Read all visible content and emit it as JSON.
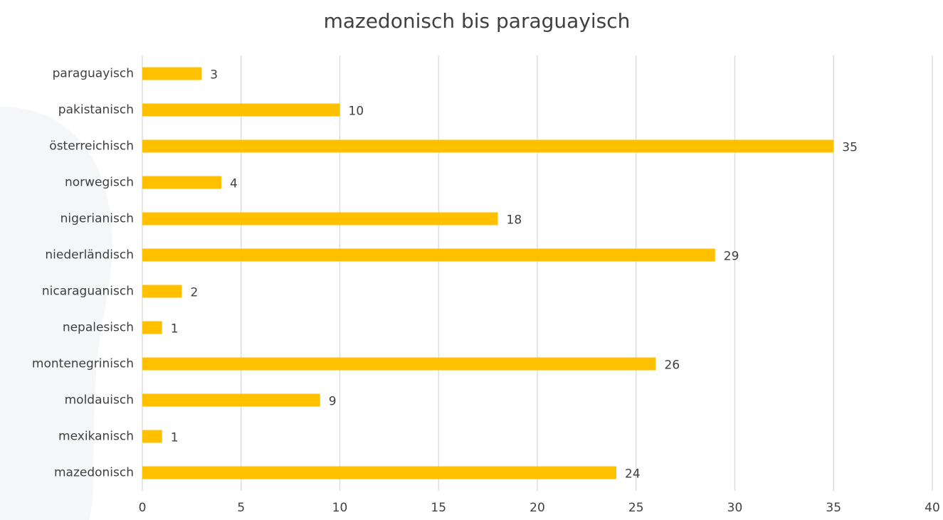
{
  "chart_data": {
    "type": "bar",
    "orientation": "horizontal",
    "title": "mazedonisch bis paraguayisch",
    "categories": [
      "mazedonisch",
      "mexikanisch",
      "moldauisch",
      "montenegrinisch",
      "nepalesisch",
      "nicaraguanisch",
      "niederländisch",
      "nigerianisch",
      "norwegisch",
      "österreichisch",
      "pakistanisch",
      "paraguayisch"
    ],
    "values": [
      24,
      1,
      9,
      26,
      1,
      2,
      29,
      18,
      4,
      35,
      10,
      3
    ],
    "color": "#ffc000",
    "xlim": [
      0,
      40
    ],
    "xticks": [
      0,
      5,
      10,
      15,
      20,
      25,
      30,
      35,
      40
    ],
    "grid": true
  }
}
